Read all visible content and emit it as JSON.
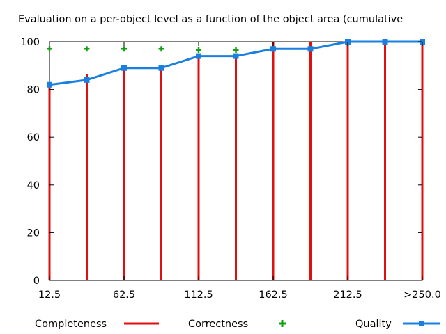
{
  "chart_data": {
    "type": "bar",
    "title": "Evaluation on a per-object level as a function of the object area (cumulative",
    "xlabel": "",
    "ylabel": "",
    "ylim": [
      0,
      100
    ],
    "yticks": [
      0,
      20,
      40,
      60,
      80,
      100
    ],
    "categories": [
      "12.5",
      "37.5",
      "62.5",
      "87.5",
      "112.5",
      "137.5",
      "162.5",
      "187.5",
      "212.5",
      "237.5",
      ">250.0"
    ],
    "xtick_labels": [
      "12.5",
      "62.5",
      "112.5",
      "162.5",
      "212.5",
      ">250.0"
    ],
    "series": [
      {
        "name": "Completeness",
        "style": "impulses",
        "color": "#e01010",
        "values": [
          83,
          86.5,
          90,
          90,
          94.5,
          94.5,
          100,
          100,
          100,
          100,
          100
        ]
      },
      {
        "name": "Correctness",
        "style": "points",
        "color": "#10a010",
        "values": [
          97,
          97,
          97,
          97,
          96.5,
          96.5,
          97,
          97,
          100,
          100,
          100
        ]
      },
      {
        "name": "Quality",
        "style": "linespoints",
        "color": "#1a80e0",
        "values": [
          82,
          84,
          89,
          89,
          94,
          94,
          97,
          97,
          100,
          100,
          100
        ]
      }
    ],
    "grid": false,
    "legend_position": "bottom"
  }
}
